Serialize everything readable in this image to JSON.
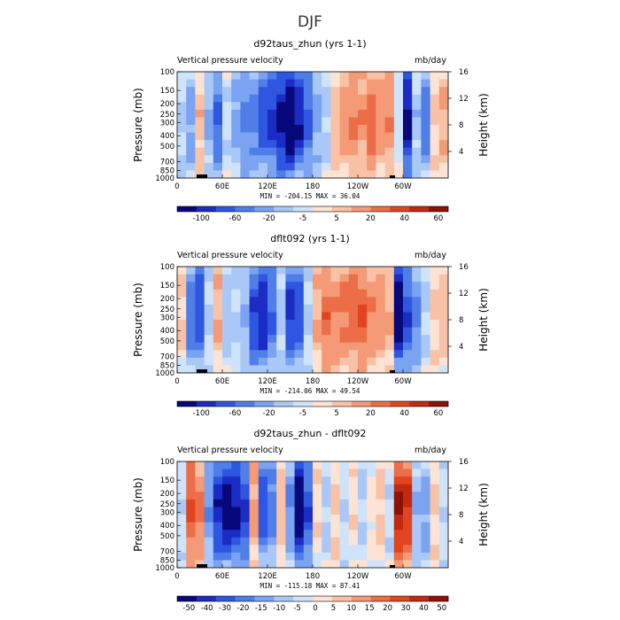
{
  "page_title": "DJF",
  "chart_data": [
    {
      "type": "heatmap",
      "title": "d92taus_zhun (yrs 1-1)",
      "left_string": "Vertical pressure velocity",
      "right_string": "mb/day",
      "ylabel": "Pressure (mb)",
      "y2label": "Height (km)",
      "y_ticks": [
        "100",
        "150",
        "200",
        "250",
        "300",
        "400",
        "500",
        "700",
        "850",
        "1000"
      ],
      "y2_ticks": [
        "16",
        "12",
        "8",
        "4"
      ],
      "x_ticks": [
        "0",
        "60E",
        "120E",
        "180",
        "120W",
        "60W"
      ],
      "stats": "MIN = -204.15   MAX =  36.04",
      "levels": [
        "-100",
        "-60",
        "-20",
        "-5",
        "5",
        "20",
        "40",
        "60"
      ],
      "colors": [
        "#08087a",
        "#1a2cc4",
        "#2f56e0",
        "#4f7ee8",
        "#7aa3f2",
        "#a9c8f7",
        "#cfe3fb",
        "#fde3d3",
        "#f9c2a6",
        "#f49a76",
        "#ec6e48",
        "#e04520",
        "#c02a10",
        "#8c1206"
      ],
      "scale": 50,
      "lon_profile": [
        -0.3,
        -0.6,
        0.4,
        -0.5,
        -1.0,
        -0.2,
        -0.6,
        -0.8,
        -0.9,
        -1.1,
        -1.3,
        -1.6,
        -1.9,
        -1.5,
        -1.1,
        -0.6,
        -0.3,
        0.4,
        0.6,
        0.8,
        0.7,
        0.9,
        0.6,
        0.7,
        -0.1,
        -1.6,
        -0.4,
        -0.9,
        0.3,
        0.5
      ]
    },
    {
      "type": "heatmap",
      "title": "dflt092 (yrs 1-1)",
      "left_string": "Vertical pressure velocity",
      "right_string": "mb/day",
      "ylabel": "Pressure (mb)",
      "y2label": "Height (km)",
      "y_ticks": [
        "100",
        "150",
        "200",
        "250",
        "300",
        "400",
        "500",
        "700",
        "850",
        "1000"
      ],
      "y2_ticks": [
        "16",
        "12",
        "8",
        "4"
      ],
      "x_ticks": [
        "0",
        "60E",
        "120E",
        "180",
        "120W",
        "60W"
      ],
      "stats": "MIN = -214.06   MAX =  49.54",
      "levels": [
        "-100",
        "-60",
        "-20",
        "-5",
        "5",
        "20",
        "40",
        "60"
      ],
      "colors": [
        "#08087a",
        "#1a2cc4",
        "#2f56e0",
        "#4f7ee8",
        "#7aa3f2",
        "#a9c8f7",
        "#cfe3fb",
        "#fde3d3",
        "#f9c2a6",
        "#f49a76",
        "#ec6e48",
        "#e04520",
        "#c02a10",
        "#8c1206"
      ],
      "scale": 50,
      "lon_profile": [
        0.3,
        -0.9,
        -1.2,
        -0.3,
        0.5,
        -0.4,
        -0.3,
        -0.5,
        -1.2,
        -1.5,
        -1.0,
        -0.4,
        -1.3,
        -1.1,
        -0.3,
        0.5,
        0.9,
        0.7,
        0.8,
        0.9,
        1.0,
        0.7,
        0.6,
        0.5,
        -1.7,
        -1.2,
        -0.8,
        -0.3,
        0.3,
        0.4
      ]
    },
    {
      "type": "heatmap",
      "title": "d92taus_zhun - dflt092",
      "left_string": "Vertical pressure velocity",
      "right_string": "mb/day",
      "ylabel": "Pressure (mb)",
      "y2label": "Height (km)",
      "y_ticks": [
        "100",
        "150",
        "200",
        "250",
        "300",
        "400",
        "500",
        "700",
        "850",
        "1000"
      ],
      "y2_ticks": [
        "16",
        "12",
        "8",
        "4"
      ],
      "x_ticks": [
        "0",
        "60E",
        "120E",
        "180",
        "120W",
        "60W"
      ],
      "stats": "MIN = -115.18   MAX =  87.41",
      "levels": [
        "-50",
        "-40",
        "-30",
        "-20",
        "-15",
        "-10",
        "-5",
        "0",
        "5",
        "10",
        "15",
        "20",
        "30",
        "40",
        "50"
      ],
      "colors": [
        "#08087a",
        "#1a2cc4",
        "#2f56e0",
        "#4f7ee8",
        "#7aa3f2",
        "#a9c8f7",
        "#cfe3fb",
        "#fde3d3",
        "#f9c2a6",
        "#f49a76",
        "#ec6e48",
        "#e04520",
        "#c02a10",
        "#8c1206"
      ],
      "scale": 40,
      "lon_profile": [
        -0.2,
        1.0,
        0.8,
        -0.7,
        -1.4,
        -1.6,
        -1.5,
        -1.3,
        0.6,
        -1.1,
        -0.9,
        0.4,
        -0.8,
        -1.8,
        -1.2,
        0.2,
        -0.3,
        0.3,
        -0.2,
        0.2,
        -0.3,
        0.1,
        0.3,
        -0.2,
        1.5,
        1.3,
        -0.5,
        -0.6,
        0.3,
        -0.2
      ]
    }
  ]
}
